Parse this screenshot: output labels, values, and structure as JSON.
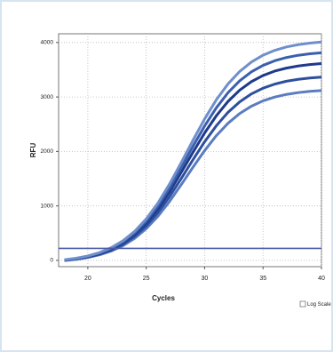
{
  "chart_data": {
    "type": "line",
    "xlabel": "Cycles",
    "ylabel": "RFU",
    "x": [
      18,
      19,
      20,
      21,
      22,
      23,
      24,
      25,
      26,
      27,
      28,
      29,
      30,
      31,
      32,
      33,
      34,
      35,
      36,
      37,
      38,
      39,
      40
    ],
    "series": [
      {
        "color": "#5a7cc0",
        "values": [
          -3,
          20,
          53,
          102,
          171,
          269,
          404,
          583,
          810,
          1084,
          1391,
          1709,
          2016,
          2290,
          2517,
          2696,
          2831,
          2929,
          2998,
          3047,
          3080,
          3103,
          3118
        ]
      },
      {
        "color": "#2e4f9e",
        "values": [
          1,
          26,
          61,
          114,
          188,
          294,
          440,
          632,
          878,
          1172,
          1503,
          1847,
          2178,
          2472,
          2718,
          2910,
          3056,
          3162,
          3236,
          3289,
          3324,
          3349,
          3365
        ]
      },
      {
        "color": "#1e3a8a",
        "values": [
          5,
          31,
          70,
          125,
          206,
          319,
          475,
          682,
          945,
          1261,
          1616,
          1984,
          2339,
          2655,
          2918,
          3125,
          3281,
          3394,
          3475,
          3530,
          3569,
          3595,
          3613
        ]
      },
      {
        "color": "#3a5fae",
        "values": [
          8,
          35,
          76,
          135,
          219,
          339,
          503,
          721,
          999,
          1332,
          1706,
          2094,
          2468,
          2801,
          3079,
          3297,
          3461,
          3580,
          3665,
          3724,
          3765,
          3792,
          3811
        ]
      },
      {
        "color": "#6f8fcc",
        "values": [
          11,
          40,
          82,
          144,
          233,
          359,
          532,
          761,
          1052,
          1403,
          1796,
          2204,
          2597,
          2948,
          3239,
          3468,
          3641,
          3767,
          3856,
          3918,
          3960,
          3989,
          4009
        ]
      }
    ],
    "threshold": 220,
    "threshold_color": "#4a5aa8",
    "xlim": [
      17.5,
      40
    ],
    "ylim": [
      -115,
      4160
    ],
    "xticks": [
      20,
      25,
      30,
      35,
      40
    ],
    "yticks": [
      0,
      1000,
      2000,
      3000,
      4000
    ],
    "grid": true,
    "log_scale": false,
    "log_scale_label": "Log Scale"
  }
}
